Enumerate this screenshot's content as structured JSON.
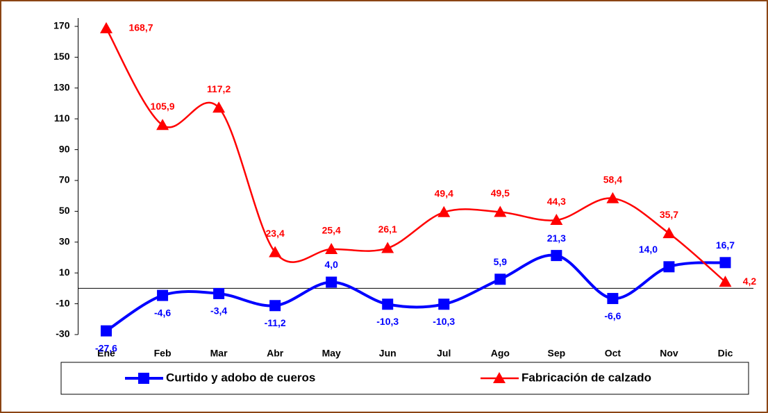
{
  "chart_data": {
    "type": "line",
    "categories": [
      "Ene",
      "Feb",
      "Mar",
      "Abr",
      "May",
      "Jun",
      "Jul",
      "Ago",
      "Sep",
      "Oct",
      "Nov",
      "Dic"
    ],
    "series": [
      {
        "name": "Curtido y adobo de cueros",
        "color": "#0000ff",
        "marker": "square",
        "values": [
          -27.6,
          -4.6,
          -3.4,
          -11.2,
          4.0,
          -10.3,
          -10.3,
          5.9,
          21.3,
          -6.6,
          14.0,
          16.7
        ],
        "value_labels": [
          "-27,6",
          "-4,6",
          "-3,4",
          "-11,2",
          "4,0",
          "-10,3",
          "-10,3",
          "5,9",
          "21,3",
          "-6,6",
          "14,0",
          "16,7"
        ]
      },
      {
        "name": "Fabricación de calzado",
        "color": "#ff0000",
        "marker": "triangle",
        "values": [
          168.7,
          105.9,
          117.2,
          23.4,
          25.4,
          26.1,
          49.4,
          49.5,
          44.3,
          58.4,
          35.7,
          4.2
        ],
        "value_labels": [
          "168,7",
          "105,9",
          "117,2",
          "23,4",
          "25,4",
          "26,1",
          "49,4",
          "49,5",
          "44,3",
          "58,4",
          "35,7",
          "4,2"
        ]
      }
    ],
    "ylim": [
      -30,
      170
    ],
    "yticks": [
      -30,
      -10,
      10,
      30,
      50,
      70,
      90,
      110,
      130,
      150,
      170
    ],
    "legend": "bottom"
  }
}
